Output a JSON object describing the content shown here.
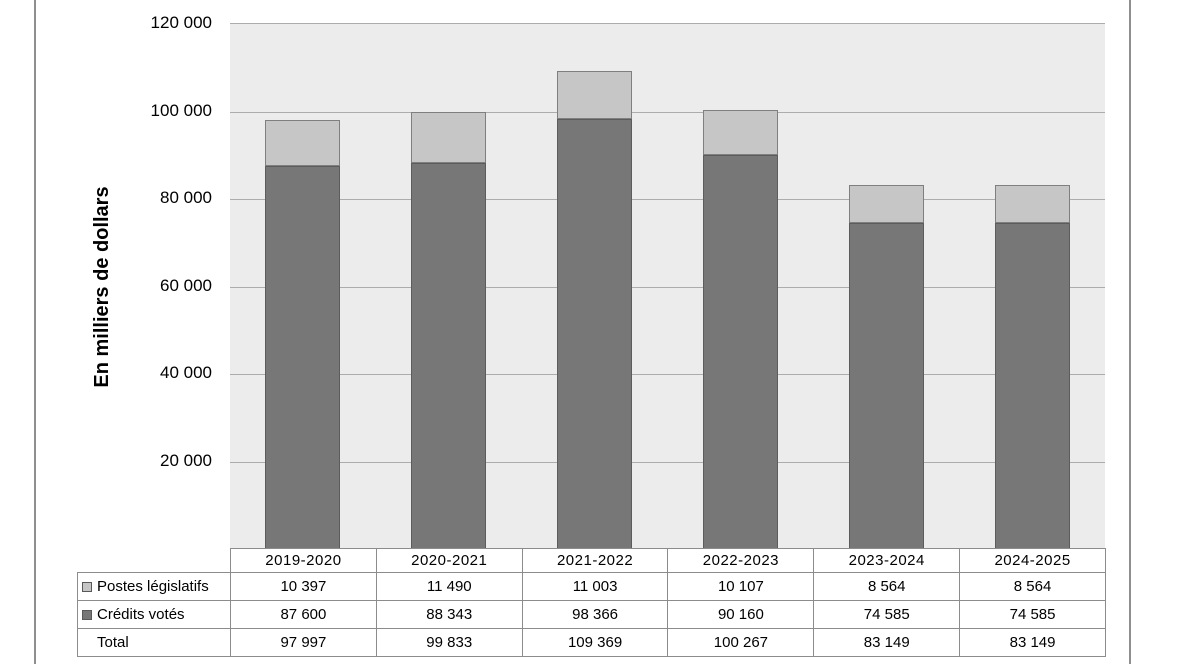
{
  "chart_data": {
    "type": "bar",
    "stacked": true,
    "title": "",
    "ylabel": "En milliers de dollars",
    "xlabel": "",
    "categories": [
      "2019-2020",
      "2020-2021",
      "2021-2022",
      "2022-2023",
      "2023-2024",
      "2024-2025"
    ],
    "series": [
      {
        "name": "Postes législatifs",
        "values": [
          10397,
          11490,
          11003,
          10107,
          8564,
          8564
        ],
        "color": "#C6C6C6",
        "border_color": "#7F7F7F",
        "stack_order": "top"
      },
      {
        "name": "Crédits votés",
        "values": [
          87600,
          88343,
          98366,
          90160,
          74585,
          74585
        ],
        "color": "#777777",
        "border_color": "#5C5C5C",
        "stack_order": "bottom"
      }
    ],
    "total_row": {
      "label": "Total",
      "values": [
        97997,
        99833,
        109369,
        100267,
        83149,
        83149
      ]
    },
    "ylim": [
      0,
      120000
    ],
    "ytick_interval": 20000,
    "ytick_labels": [
      "120 000",
      "100 000",
      "80 000",
      "60 000",
      "40 000",
      "20 000"
    ],
    "grid": "horizontal",
    "legend_position": "table-below",
    "number_format": "space-thousands",
    "colors": {
      "plot_background": "#ECECEC",
      "gridline": "#ACACAC",
      "table_border": "#8C8C8C",
      "page_edge_line": "#8F8F8F",
      "text": "#000000"
    }
  }
}
